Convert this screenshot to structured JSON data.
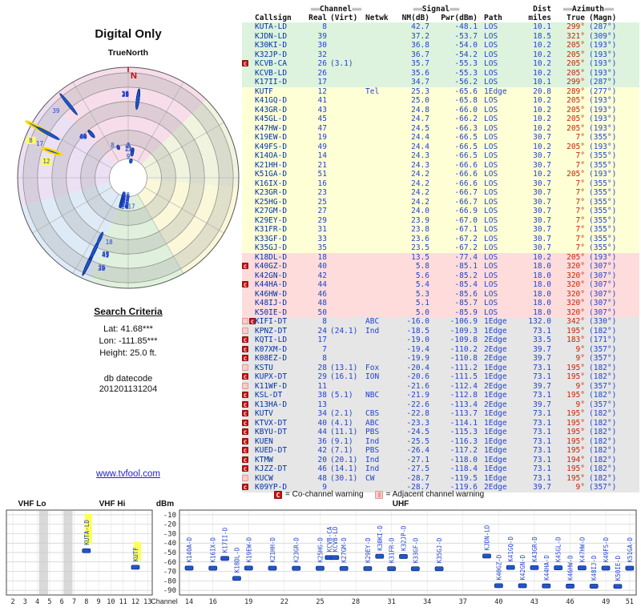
{
  "polar": {
    "title": "Digital Only",
    "north_label": "TrueNorth",
    "north_letter": "N",
    "sectors": [
      {
        "from": 315,
        "to": 45,
        "color": "#f6d7e6"
      },
      {
        "from": 45,
        "to": 95,
        "color": "#edf2d8"
      },
      {
        "from": 95,
        "to": 150,
        "color": "#f9f7d2"
      },
      {
        "from": 150,
        "to": 200,
        "color": "#d9efd6"
      },
      {
        "from": 200,
        "to": 255,
        "color": "#d8e7f6"
      },
      {
        "from": 255,
        "to": 315,
        "color": "#e9daf3"
      }
    ],
    "rings": [
      0.17,
      0.3,
      0.43,
      0.56,
      0.69,
      0.82,
      0.95
    ]
  },
  "search": {
    "heading": "Search Criteria",
    "lat": "Lat: 41.68***",
    "lon": "Lon: -111.85***",
    "height": "Height: 25.0 ft.",
    "datecode_label": "db datecode",
    "datecode": "201201131204"
  },
  "link": "www.tvfool.com",
  "legend": {
    "co": {
      "symbol": "C",
      "text": "= Co-channel warning"
    },
    "adj": {
      "symbol": "",
      "text": "= Adjacent channel warning"
    }
  },
  "table": {
    "header": {
      "deco": "≡≡≡",
      "channel": "Channel",
      "signal": "Signal",
      "dist": "Dist",
      "azimuth": "Azimuth",
      "callsign": "Callsign",
      "real": "Real",
      "virt": "(Virt)",
      "netwk": "Netwk",
      "nm": "NM(dB)",
      "pwr": "Pwr(dBm)",
      "path": "Path",
      "miles": "miles",
      "true": "True",
      "magn": "(Magn)"
    }
  },
  "chart_data": {
    "type": "composite",
    "polar_plot": {
      "type": "radar",
      "radial": "signal strength NM(dB)",
      "angular": "true azimuth deg"
    },
    "band_chart": {
      "type": "scatter",
      "ylabel": "dBm",
      "xlabel": "Channel",
      "ylim": [
        -95,
        -5
      ],
      "yticks": [
        -10,
        -20,
        -30,
        -40,
        -50,
        -60,
        -70,
        -80,
        -90
      ],
      "vhf_label_lo": "VHF Lo",
      "vhf_label_hi": "VHF Hi",
      "uhf_label": "UHF",
      "vhf_ticks": [
        2,
        3,
        4,
        5,
        6,
        7,
        8,
        9,
        10,
        11,
        12,
        13
      ],
      "uhf_ticks": [
        14,
        16,
        19,
        22,
        25,
        28,
        31,
        34,
        37,
        40,
        43,
        46,
        49,
        51
      ],
      "plot_floor_dbm": -90
    },
    "highlighted": [
      "KUTA-LD",
      "KUTF"
    ],
    "stations": [
      {
        "callsign": "KUTA-LD",
        "ch": 8,
        "virt": "",
        "net": "",
        "nm": 42.7,
        "pwr": -48.1,
        "path": "LOS",
        "dist": 10.1,
        "az_true": "299°",
        "az_magn": "(287°)",
        "sec": "strong",
        "mk": []
      },
      {
        "callsign": "KJDN-LD",
        "ch": 39,
        "virt": "",
        "net": "",
        "nm": 37.2,
        "pwr": -53.7,
        "path": "LOS",
        "dist": 18.5,
        "az_true": "321°",
        "az_magn": "(309°)",
        "sec": "strong",
        "mk": []
      },
      {
        "callsign": "K30KI-D",
        "ch": 30,
        "virt": "",
        "net": "",
        "nm": 36.8,
        "pwr": -54.0,
        "path": "LOS",
        "dist": 10.2,
        "az_true": "205°",
        "az_magn": "(193°)",
        "sec": "strong",
        "mk": []
      },
      {
        "callsign": "K32JP-D",
        "ch": 32,
        "virt": "",
        "net": "",
        "nm": 36.7,
        "pwr": -54.2,
        "path": "LOS",
        "dist": 10.2,
        "az_true": "205°",
        "az_magn": "(193°)",
        "sec": "strong",
        "mk": []
      },
      {
        "callsign": "KCVB-CA",
        "ch": 26,
        "virt": "(3.1)",
        "net": "",
        "nm": 35.7,
        "pwr": -55.3,
        "path": "LOS",
        "dist": 10.2,
        "az_true": "205°",
        "az_magn": "(193°)",
        "sec": "strong",
        "mk": [
          "C"
        ]
      },
      {
        "callsign": "KCVB-LD",
        "ch": 26,
        "virt": "",
        "net": "",
        "nm": 35.6,
        "pwr": -55.3,
        "path": "LOS",
        "dist": 10.2,
        "az_true": "205°",
        "az_magn": "(193°)",
        "sec": "strong",
        "mk": []
      },
      {
        "callsign": "K17II-D",
        "ch": 17,
        "virt": "",
        "net": "",
        "nm": 34.7,
        "pwr": -56.2,
        "path": "LOS",
        "dist": 10.1,
        "az_true": "299°",
        "az_magn": "(287°)",
        "sec": "strong",
        "mk": []
      },
      {
        "callsign": "KUTF",
        "ch": 12,
        "virt": "",
        "net": "Tel",
        "nm": 25.3,
        "pwr": -65.6,
        "path": "1Edge",
        "dist": 20.8,
        "az_true": "289°",
        "az_magn": "(277°)",
        "sec": "mod",
        "mk": []
      },
      {
        "callsign": "K41GQ-D",
        "ch": 41,
        "virt": "",
        "net": "",
        "nm": 25.0,
        "pwr": -65.8,
        "path": "LOS",
        "dist": 10.2,
        "az_true": "205°",
        "az_magn": "(193°)",
        "sec": "mod",
        "mk": []
      },
      {
        "callsign": "K43GR-D",
        "ch": 43,
        "virt": "",
        "net": "",
        "nm": 24.8,
        "pwr": -66.0,
        "path": "LOS",
        "dist": 10.2,
        "az_true": "205°",
        "az_magn": "(193°)",
        "sec": "mod",
        "mk": []
      },
      {
        "callsign": "K45GL-D",
        "ch": 45,
        "virt": "",
        "net": "",
        "nm": 24.7,
        "pwr": -66.2,
        "path": "LOS",
        "dist": 10.2,
        "az_true": "205°",
        "az_magn": "(193°)",
        "sec": "mod",
        "mk": []
      },
      {
        "callsign": "K47HW-D",
        "ch": 47,
        "virt": "",
        "net": "",
        "nm": 24.5,
        "pwr": -66.3,
        "path": "LOS",
        "dist": 10.2,
        "az_true": "205°",
        "az_magn": "(193°)",
        "sec": "mod",
        "mk": []
      },
      {
        "callsign": "K19EW-D",
        "ch": 19,
        "virt": "",
        "net": "",
        "nm": 24.4,
        "pwr": -66.5,
        "path": "LOS",
        "dist": 30.7,
        "az_true": "7°",
        "az_magn": "(355°)",
        "sec": "mod",
        "mk": []
      },
      {
        "callsign": "K49FS-D",
        "ch": 49,
        "virt": "",
        "net": "",
        "nm": 24.4,
        "pwr": -66.5,
        "path": "LOS",
        "dist": 10.2,
        "az_true": "205°",
        "az_magn": "(193°)",
        "sec": "mod",
        "mk": []
      },
      {
        "callsign": "K14OA-D",
        "ch": 14,
        "virt": "",
        "net": "",
        "nm": 24.3,
        "pwr": -66.5,
        "path": "LOS",
        "dist": 30.7,
        "az_true": "7°",
        "az_magn": "(355°)",
        "sec": "mod",
        "mk": []
      },
      {
        "callsign": "K21HH-D",
        "ch": 21,
        "virt": "",
        "net": "",
        "nm": 24.3,
        "pwr": -66.6,
        "path": "LOS",
        "dist": 30.7,
        "az_true": "7°",
        "az_magn": "(355°)",
        "sec": "mod",
        "mk": []
      },
      {
        "callsign": "K51GA-D",
        "ch": 51,
        "virt": "",
        "net": "",
        "nm": 24.2,
        "pwr": -66.6,
        "path": "LOS",
        "dist": 10.2,
        "az_true": "205°",
        "az_magn": "(193°)",
        "sec": "mod",
        "mk": []
      },
      {
        "callsign": "K16IX-D",
        "ch": 16,
        "virt": "",
        "net": "",
        "nm": 24.2,
        "pwr": -66.6,
        "path": "LOS",
        "dist": 30.7,
        "az_true": "7°",
        "az_magn": "(355°)",
        "sec": "mod",
        "mk": []
      },
      {
        "callsign": "K23GR-D",
        "ch": 23,
        "virt": "",
        "net": "",
        "nm": 24.2,
        "pwr": -66.7,
        "path": "LOS",
        "dist": 30.7,
        "az_true": "7°",
        "az_magn": "(355°)",
        "sec": "mod",
        "mk": []
      },
      {
        "callsign": "K25HG-D",
        "ch": 25,
        "virt": "",
        "net": "",
        "nm": 24.2,
        "pwr": -66.7,
        "path": "LOS",
        "dist": 30.7,
        "az_true": "7°",
        "az_magn": "(355°)",
        "sec": "mod",
        "mk": []
      },
      {
        "callsign": "K27GM-D",
        "ch": 27,
        "virt": "",
        "net": "",
        "nm": 24.0,
        "pwr": -66.9,
        "path": "LOS",
        "dist": 30.7,
        "az_true": "7°",
        "az_magn": "(355°)",
        "sec": "mod",
        "mk": []
      },
      {
        "callsign": "K29EY-D",
        "ch": 29,
        "virt": "",
        "net": "",
        "nm": 23.9,
        "pwr": -67.0,
        "path": "LOS",
        "dist": 30.7,
        "az_true": "7°",
        "az_magn": "(355°)",
        "sec": "mod",
        "mk": []
      },
      {
        "callsign": "K31FR-D",
        "ch": 31,
        "virt": "",
        "net": "",
        "nm": 23.8,
        "pwr": -67.1,
        "path": "LOS",
        "dist": 30.7,
        "az_true": "7°",
        "az_magn": "(355°)",
        "sec": "mod",
        "mk": []
      },
      {
        "callsign": "K33GF-D",
        "ch": 33,
        "virt": "",
        "net": "",
        "nm": 23.6,
        "pwr": -67.2,
        "path": "LOS",
        "dist": 30.7,
        "az_true": "7°",
        "az_magn": "(355°)",
        "sec": "mod",
        "mk": []
      },
      {
        "callsign": "K35GJ-D",
        "ch": 35,
        "virt": "",
        "net": "",
        "nm": 23.5,
        "pwr": -67.2,
        "path": "LOS",
        "dist": 30.7,
        "az_true": "7°",
        "az_magn": "(355°)",
        "sec": "mod",
        "mk": []
      },
      {
        "callsign": "K18DL-D",
        "ch": 18,
        "virt": "",
        "net": "",
        "nm": 13.5,
        "pwr": -77.4,
        "path": "LOS",
        "dist": 10.2,
        "az_true": "205°",
        "az_magn": "(193°)",
        "sec": "weak",
        "mk": []
      },
      {
        "callsign": "K40GZ-D",
        "ch": 40,
        "virt": "",
        "net": "",
        "nm": 5.8,
        "pwr": -85.1,
        "path": "LOS",
        "dist": 18.0,
        "az_true": "320°",
        "az_magn": "(307°)",
        "sec": "weak",
        "mk": [
          "C"
        ]
      },
      {
        "callsign": "K42GN-D",
        "ch": 42,
        "virt": "",
        "net": "",
        "nm": 5.6,
        "pwr": -85.2,
        "path": "LOS",
        "dist": 18.0,
        "az_true": "320°",
        "az_magn": "(307°)",
        "sec": "weak",
        "mk": []
      },
      {
        "callsign": "K44HA-D",
        "ch": 44,
        "virt": "",
        "net": "",
        "nm": 5.4,
        "pwr": -85.4,
        "path": "LOS",
        "dist": 18.0,
        "az_true": "320°",
        "az_magn": "(307°)",
        "sec": "weak",
        "mk": [
          "C"
        ]
      },
      {
        "callsign": "K46HW-D",
        "ch": 46,
        "virt": "",
        "net": "",
        "nm": 5.3,
        "pwr": -85.6,
        "path": "LOS",
        "dist": 18.0,
        "az_true": "320°",
        "az_magn": "(307°)",
        "sec": "weak",
        "mk": []
      },
      {
        "callsign": "K48IJ-D",
        "ch": 48,
        "virt": "",
        "net": "",
        "nm": 5.1,
        "pwr": -85.7,
        "path": "LOS",
        "dist": 18.0,
        "az_true": "320°",
        "az_magn": "(307°)",
        "sec": "weak",
        "mk": []
      },
      {
        "callsign": "K50IE-D",
        "ch": 50,
        "virt": "",
        "net": "",
        "nm": 5.0,
        "pwr": -85.9,
        "path": "LOS",
        "dist": 18.0,
        "az_true": "320°",
        "az_magn": "(307°)",
        "sec": "weak",
        "mk": []
      },
      {
        "callsign": "KIFI-DT",
        "ch": 8,
        "virt": "",
        "net": "ABC",
        "nm": -16.0,
        "pwr": -106.9,
        "path": "1Edge",
        "dist": 132.0,
        "az_true": "342°",
        "az_magn": "(330°)",
        "sec": "poor",
        "mk": [
          "A",
          "C"
        ]
      },
      {
        "callsign": "KPNZ-DT",
        "ch": 24,
        "virt": "(24.1)",
        "net": "Ind",
        "nm": -18.5,
        "pwr": -109.3,
        "path": "1Edge",
        "dist": 73.1,
        "az_true": "195°",
        "az_magn": "(182°)",
        "sec": "poor",
        "mk": [
          "A"
        ]
      },
      {
        "callsign": "KQTI-LD",
        "ch": 17,
        "virt": "",
        "net": "",
        "nm": -19.0,
        "pwr": -109.8,
        "path": "2Edge",
        "dist": 33.5,
        "az_true": "183°",
        "az_magn": "(171°)",
        "sec": "poor",
        "mk": [
          "C"
        ]
      },
      {
        "callsign": "K07XM-D",
        "ch": 7,
        "virt": "",
        "net": "",
        "nm": -19.4,
        "pwr": -110.2,
        "path": "2Edge",
        "dist": 39.7,
        "az_true": "9°",
        "az_magn": "(357°)",
        "sec": "poor",
        "mk": [
          "C"
        ]
      },
      {
        "callsign": "K08EZ-D",
        "ch": 8,
        "virt": "",
        "net": "",
        "nm": -19.9,
        "pwr": -110.8,
        "path": "2Edge",
        "dist": 39.7,
        "az_true": "9°",
        "az_magn": "(357°)",
        "sec": "poor",
        "mk": [
          "C"
        ]
      },
      {
        "callsign": "KSTU",
        "ch": 28,
        "virt": "(13.1)",
        "net": "Fox",
        "nm": -20.4,
        "pwr": -111.2,
        "path": "1Edge",
        "dist": 73.1,
        "az_true": "195°",
        "az_magn": "(182°)",
        "sec": "poor",
        "mk": [
          "A"
        ]
      },
      {
        "callsign": "KUPX-DT",
        "ch": 29,
        "virt": "(16.1)",
        "net": "ION",
        "nm": -20.6,
        "pwr": -111.5,
        "path": "1Edge",
        "dist": 73.1,
        "az_true": "195°",
        "az_magn": "(182°)",
        "sec": "poor",
        "mk": [
          "C"
        ]
      },
      {
        "callsign": "K11WF-D",
        "ch": 11,
        "virt": "",
        "net": "",
        "nm": -21.6,
        "pwr": -112.4,
        "path": "2Edge",
        "dist": 39.7,
        "az_true": "9°",
        "az_magn": "(357°)",
        "sec": "poor",
        "mk": [
          "A"
        ]
      },
      {
        "callsign": "KSL-DT",
        "ch": 38,
        "virt": "(5.1)",
        "net": "NBC",
        "nm": -21.9,
        "pwr": -112.8,
        "path": "1Edge",
        "dist": 73.1,
        "az_true": "195°",
        "az_magn": "(182°)",
        "sec": "poor",
        "mk": [
          "C"
        ]
      },
      {
        "callsign": "K13HA-D",
        "ch": 13,
        "virt": "",
        "net": "",
        "nm": -22.6,
        "pwr": -113.4,
        "path": "2Edge",
        "dist": 39.7,
        "az_true": "9°",
        "az_magn": "(357°)",
        "sec": "poor",
        "mk": [
          "C"
        ]
      },
      {
        "callsign": "KUTV",
        "ch": 34,
        "virt": "(2.1)",
        "net": "CBS",
        "nm": -22.8,
        "pwr": -113.7,
        "path": "1Edge",
        "dist": 73.1,
        "az_true": "195°",
        "az_magn": "(182°)",
        "sec": "poor",
        "mk": [
          "C"
        ]
      },
      {
        "callsign": "KTVX-DT",
        "ch": 40,
        "virt": "(4.1)",
        "net": "ABC",
        "nm": -23.3,
        "pwr": -114.1,
        "path": "1Edge",
        "dist": 73.1,
        "az_true": "195°",
        "az_magn": "(182°)",
        "sec": "poor",
        "mk": [
          "C"
        ]
      },
      {
        "callsign": "KBYU-DT",
        "ch": 44,
        "virt": "(11.1)",
        "net": "PBS",
        "nm": -24.5,
        "pwr": -115.3,
        "path": "1Edge",
        "dist": 73.1,
        "az_true": "195°",
        "az_magn": "(182°)",
        "sec": "poor",
        "mk": [
          "C"
        ]
      },
      {
        "callsign": "KUEN",
        "ch": 36,
        "virt": "(9.1)",
        "net": "Ind",
        "nm": -25.5,
        "pwr": -116.3,
        "path": "1Edge",
        "dist": 73.1,
        "az_true": "195°",
        "az_magn": "(182°)",
        "sec": "poor",
        "mk": [
          "C"
        ]
      },
      {
        "callsign": "KUED-DT",
        "ch": 42,
        "virt": "(7.1)",
        "net": "PBS",
        "nm": -26.4,
        "pwr": -117.2,
        "path": "1Edge",
        "dist": 73.1,
        "az_true": "195°",
        "az_magn": "(182°)",
        "sec": "poor",
        "mk": [
          "C"
        ]
      },
      {
        "callsign": "KTMW",
        "ch": 20,
        "virt": "(20.1)",
        "net": "Ind",
        "nm": -27.1,
        "pwr": -118.0,
        "path": "1Edge",
        "dist": 73.1,
        "az_true": "194°",
        "az_magn": "(182°)",
        "sec": "poor",
        "mk": [
          "C"
        ]
      },
      {
        "callsign": "KJZZ-DT",
        "ch": 46,
        "virt": "(14.1)",
        "net": "Ind",
        "nm": -27.5,
        "pwr": -118.4,
        "path": "1Edge",
        "dist": 73.1,
        "az_true": "195°",
        "az_magn": "(182°)",
        "sec": "poor",
        "mk": [
          "C"
        ]
      },
      {
        "callsign": "KUCW",
        "ch": 48,
        "virt": "(30.1)",
        "net": "CW",
        "nm": -28.7,
        "pwr": -119.5,
        "path": "1Edge",
        "dist": 73.1,
        "az_true": "195°",
        "az_magn": "(182°)",
        "sec": "poor",
        "mk": [
          "A"
        ]
      },
      {
        "callsign": "K09YP-D",
        "ch": 9,
        "virt": "",
        "net": "",
        "nm": -28.7,
        "pwr": -119.6,
        "path": "2Edge",
        "dist": 39.7,
        "az_true": "9°",
        "az_magn": "(357°)",
        "sec": "poor",
        "mk": [
          "C"
        ]
      }
    ]
  }
}
